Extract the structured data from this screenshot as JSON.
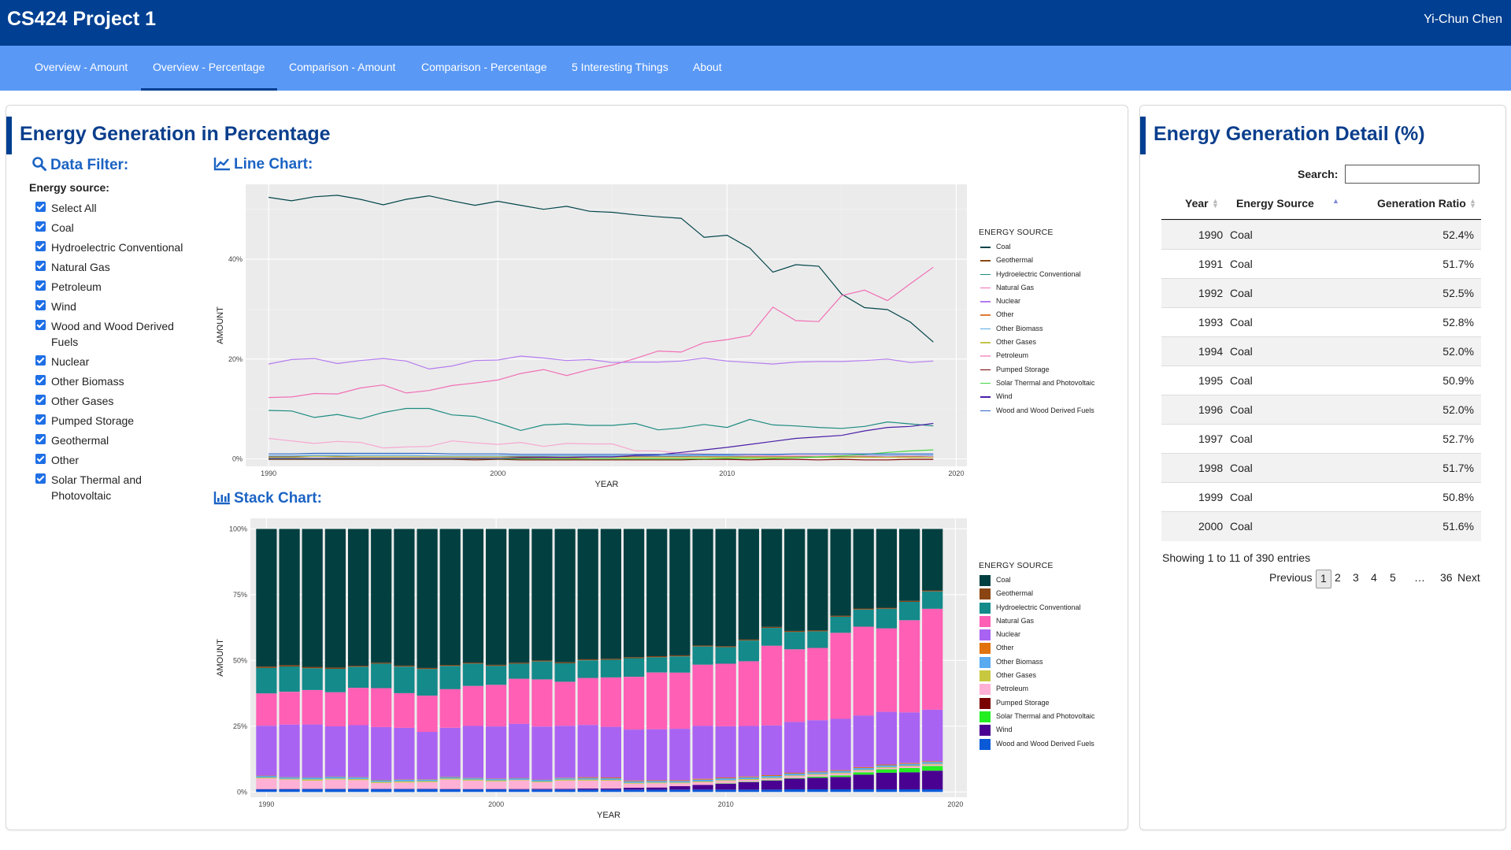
{
  "app": {
    "title": "CS424 Project 1",
    "user": "Yi-Chun Chen"
  },
  "nav": {
    "tabs": [
      {
        "label": "Overview - Amount"
      },
      {
        "label": "Overview - Percentage"
      },
      {
        "label": "Comparison - Amount"
      },
      {
        "label": "Comparison - Percentage"
      },
      {
        "label": "5 Interesting Things"
      },
      {
        "label": "About"
      }
    ],
    "active_index": 1
  },
  "main": {
    "title": "Energy Generation in Percentage",
    "filter": {
      "title": "Data Filter:",
      "label": "Energy source:",
      "options": [
        {
          "label": "Select All",
          "checked": true
        },
        {
          "label": "Coal",
          "checked": true
        },
        {
          "label": "Hydroelectric Conventional",
          "checked": true
        },
        {
          "label": "Natural Gas",
          "checked": true
        },
        {
          "label": "Petroleum",
          "checked": true
        },
        {
          "label": "Wind",
          "checked": true
        },
        {
          "label": "Wood and Wood Derived Fuels",
          "checked": true
        },
        {
          "label": "Nuclear",
          "checked": true
        },
        {
          "label": "Other Biomass",
          "checked": true
        },
        {
          "label": "Other Gases",
          "checked": true
        },
        {
          "label": "Pumped Storage",
          "checked": true
        },
        {
          "label": "Geothermal",
          "checked": true
        },
        {
          "label": "Other",
          "checked": true
        },
        {
          "label": "Solar Thermal and Photovoltaic",
          "checked": true
        }
      ]
    },
    "line_chart_title": "Line Chart:",
    "stack_chart_title": "Stack Chart:"
  },
  "chart_data": [
    {
      "type": "line",
      "xlabel": "YEAR",
      "ylabel": "AMOUNT",
      "legend_title": "ENERGY SOURCE",
      "legend_position": "right",
      "grid": true,
      "x_ticks": [
        "1990",
        "2000",
        "2010",
        "2020"
      ],
      "y_ticks": [
        "0%",
        "20%",
        "40%"
      ],
      "xlim": [
        1989,
        2020.5
      ],
      "ylim": [
        -1.5,
        55
      ],
      "x": [
        1990,
        1991,
        1992,
        1993,
        1994,
        1995,
        1996,
        1997,
        1998,
        1999,
        2000,
        2001,
        2002,
        2003,
        2004,
        2005,
        2006,
        2007,
        2008,
        2009,
        2010,
        2011,
        2012,
        2013,
        2014,
        2015,
        2016,
        2017,
        2018,
        2019
      ],
      "series": [
        {
          "name": "Coal",
          "color": "#02454a",
          "values": [
            52.4,
            51.7,
            52.5,
            52.8,
            52.0,
            50.9,
            52.0,
            52.7,
            51.7,
            50.8,
            51.6,
            50.8,
            50.0,
            50.6,
            49.6,
            49.4,
            48.9,
            48.5,
            48.2,
            44.4,
            44.8,
            42.2,
            37.4,
            38.9,
            38.6,
            33.0,
            30.3,
            29.9,
            27.4,
            23.4
          ]
        },
        {
          "name": "Geothermal",
          "color": "#8b4a13",
          "values": [
            0.5,
            0.5,
            0.5,
            0.5,
            0.4,
            0.4,
            0.4,
            0.4,
            0.4,
            0.4,
            0.4,
            0.4,
            0.4,
            0.4,
            0.4,
            0.4,
            0.4,
            0.4,
            0.4,
            0.4,
            0.4,
            0.4,
            0.4,
            0.4,
            0.4,
            0.4,
            0.4,
            0.4,
            0.4,
            0.4
          ]
        },
        {
          "name": "Hydroelectric Conventional",
          "color": "#1d8b80",
          "values": [
            9.7,
            9.6,
            8.3,
            8.9,
            8.0,
            9.3,
            10.1,
            10.1,
            8.8,
            8.5,
            7.2,
            5.7,
            6.8,
            7.0,
            6.7,
            6.7,
            7.1,
            5.8,
            6.2,
            6.9,
            6.3,
            7.9,
            6.8,
            6.6,
            6.3,
            6.1,
            6.5,
            7.4,
            7.0,
            6.6
          ]
        },
        {
          "name": "Natural Gas",
          "color": "#f26fb5",
          "values": [
            12.3,
            12.4,
            13.1,
            13.0,
            14.2,
            14.8,
            13.2,
            13.7,
            14.7,
            15.2,
            15.8,
            17.1,
            17.9,
            16.7,
            17.9,
            18.8,
            20.1,
            21.6,
            21.4,
            23.3,
            23.9,
            24.7,
            30.4,
            27.7,
            27.5,
            32.7,
            33.8,
            31.7,
            35.1,
            38.4
          ]
        },
        {
          "name": "Nuclear",
          "color": "#b57cf0",
          "values": [
            19.0,
            19.9,
            20.1,
            19.1,
            19.7,
            20.1,
            19.6,
            18.0,
            18.6,
            19.7,
            19.8,
            20.6,
            20.2,
            19.7,
            19.9,
            19.3,
            19.4,
            19.4,
            19.6,
            20.2,
            19.6,
            19.3,
            19.0,
            19.4,
            19.5,
            19.5,
            19.7,
            20.0,
            19.3,
            19.6
          ]
        },
        {
          "name": "Other",
          "color": "#e07b39",
          "values": [
            0.1,
            0.1,
            0.1,
            0.1,
            0.1,
            0.1,
            0.1,
            0.1,
            0.1,
            0.1,
            0.1,
            0.1,
            0.1,
            0.1,
            0.3,
            0.3,
            0.3,
            0.3,
            0.3,
            0.3,
            0.3,
            0.3,
            0.3,
            0.3,
            0.3,
            0.3,
            0.3,
            0.3,
            0.3,
            0.3
          ]
        },
        {
          "name": "Other Biomass",
          "color": "#5aa9e6",
          "values": [
            0.6,
            0.6,
            0.7,
            0.7,
            0.7,
            0.7,
            0.7,
            0.6,
            0.6,
            0.6,
            0.6,
            0.6,
            0.6,
            0.6,
            0.6,
            0.6,
            0.6,
            0.6,
            0.6,
            0.7,
            0.7,
            0.7,
            0.7,
            0.7,
            0.7,
            0.7,
            0.7,
            0.7,
            0.7,
            0.7
          ]
        },
        {
          "name": "Other Gases",
          "color": "#c2c24a",
          "values": [
            0.3,
            0.3,
            0.5,
            0.4,
            0.4,
            0.4,
            0.4,
            0.4,
            0.4,
            0.4,
            0.4,
            0.2,
            0.3,
            0.4,
            0.4,
            0.3,
            0.3,
            0.3,
            0.3,
            0.3,
            0.3,
            0.3,
            0.3,
            0.3,
            0.3,
            0.3,
            0.3,
            0.3,
            0.3,
            0.3
          ]
        },
        {
          "name": "Petroleum",
          "color": "#f7a8d0",
          "values": [
            4.1,
            3.6,
            3.1,
            3.5,
            3.3,
            2.2,
            2.4,
            2.5,
            3.6,
            3.2,
            2.9,
            3.3,
            2.5,
            3.1,
            3.0,
            3.0,
            1.6,
            1.6,
            1.1,
            1.0,
            0.9,
            0.7,
            0.6,
            0.7,
            0.7,
            0.7,
            0.6,
            0.5,
            0.6,
            0.5
          ]
        },
        {
          "name": "Pumped Storage",
          "color": "#7a0000",
          "values": [
            -0.1,
            -0.1,
            -0.1,
            -0.1,
            -0.1,
            -0.1,
            -0.1,
            -0.1,
            -0.1,
            -0.2,
            -0.1,
            -0.2,
            -0.2,
            -0.2,
            -0.2,
            -0.2,
            -0.2,
            -0.2,
            -0.2,
            -0.1,
            -0.1,
            -0.2,
            -0.1,
            -0.1,
            -0.2,
            -0.1,
            -0.2,
            -0.2,
            -0.1,
            -0.1
          ]
        },
        {
          "name": "Solar Thermal and Photovoltaic",
          "color": "#44d644",
          "values": [
            0.0,
            0.0,
            0.0,
            0.0,
            0.0,
            0.0,
            0.0,
            0.0,
            0.0,
            0.0,
            0.0,
            0.0,
            0.0,
            0.0,
            0.0,
            0.0,
            0.0,
            0.0,
            0.0,
            0.0,
            0.1,
            0.1,
            0.1,
            0.2,
            0.4,
            0.6,
            0.9,
            1.3,
            1.6,
            1.8
          ]
        },
        {
          "name": "Wind",
          "color": "#4a1fa8",
          "values": [
            0.1,
            0.1,
            0.1,
            0.1,
            0.1,
            0.1,
            0.1,
            0.1,
            0.1,
            0.1,
            0.1,
            0.2,
            0.3,
            0.3,
            0.4,
            0.4,
            0.7,
            0.8,
            1.3,
            1.8,
            2.3,
            2.9,
            3.5,
            4.1,
            4.4,
            4.7,
            5.6,
            6.3,
            6.5,
            7.1
          ]
        },
        {
          "name": "Wood and Wood Derived Fuels",
          "color": "#2a66c8",
          "values": [
            1.0,
            1.0,
            1.1,
            1.1,
            1.1,
            1.1,
            1.1,
            1.1,
            1.0,
            1.0,
            1.0,
            0.9,
            0.9,
            0.9,
            0.9,
            0.9,
            0.9,
            0.9,
            0.9,
            0.9,
            0.9,
            0.9,
            0.9,
            1.0,
            1.0,
            1.0,
            1.0,
            1.0,
            1.0,
            1.0
          ]
        }
      ]
    },
    {
      "type": "bar",
      "stacked": true,
      "xlabel": "YEAR",
      "ylabel": "AMOUNT",
      "legend_title": "ENERGY SOURCE",
      "legend_position": "right",
      "grid": true,
      "x_ticks": [
        "1990",
        "2000",
        "2010",
        "2020"
      ],
      "y_ticks": [
        "0%",
        "25%",
        "50%",
        "75%",
        "100%"
      ],
      "xlim": [
        1989.3,
        2020.5
      ],
      "ylim": [
        -0.02,
        1.04
      ],
      "stack_order_bottom_to_top": [
        "Wood and Wood Derived Fuels",
        "Wind",
        "Solar Thermal and Photovoltaic",
        "Pumped Storage",
        "Petroleum",
        "Other Gases",
        "Other Biomass",
        "Other",
        "Nuclear",
        "Natural Gas",
        "Hydroelectric Conventional",
        "Geothermal",
        "Coal"
      ],
      "series_colors": {
        "Coal": "#023f40",
        "Geothermal": "#8b4513",
        "Hydroelectric Conventional": "#148a8a",
        "Natural Gas": "#ff5fb4",
        "Nuclear": "#a963f2",
        "Other": "#e0720f",
        "Other Biomass": "#5aaaf0",
        "Other Gases": "#c8c840",
        "Petroleum": "#ffb0d4",
        "Pumped Storage": "#7a0000",
        "Solar Thermal and Photovoltaic": "#22ee22",
        "Wind": "#4a0090",
        "Wood and Wood Derived Fuels": "#0a5ad8"
      }
    }
  ],
  "detail": {
    "title": "Energy Generation Detail (%)",
    "search_label": "Search:",
    "search_value": "",
    "columns": [
      "Year",
      "Energy Source",
      "Generation Ratio"
    ],
    "rows": [
      [
        "1990",
        "Coal",
        "52.4%"
      ],
      [
        "1991",
        "Coal",
        "51.7%"
      ],
      [
        "1992",
        "Coal",
        "52.5%"
      ],
      [
        "1993",
        "Coal",
        "52.8%"
      ],
      [
        "1994",
        "Coal",
        "52.0%"
      ],
      [
        "1995",
        "Coal",
        "50.9%"
      ],
      [
        "1996",
        "Coal",
        "52.0%"
      ],
      [
        "1997",
        "Coal",
        "52.7%"
      ],
      [
        "1998",
        "Coal",
        "51.7%"
      ],
      [
        "1999",
        "Coal",
        "50.8%"
      ],
      [
        "2000",
        "Coal",
        "51.6%"
      ]
    ],
    "info": "Showing 1 to 11 of 390 entries",
    "pager": {
      "previous": "Previous",
      "pages": [
        "1",
        "2",
        "3",
        "4",
        "5",
        "…",
        "36"
      ],
      "next": "Next",
      "current": "1"
    }
  }
}
